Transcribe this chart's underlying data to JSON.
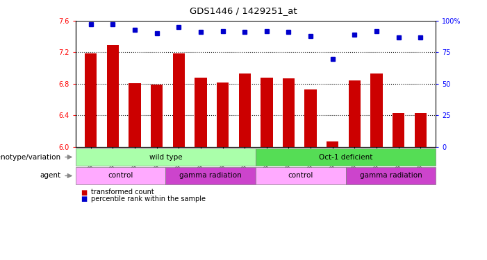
{
  "title": "GDS1446 / 1429251_at",
  "samples": [
    "GSM37835",
    "GSM37837",
    "GSM37838",
    "GSM37839",
    "GSM37840",
    "GSM37841",
    "GSM37842",
    "GSM37976",
    "GSM37843",
    "GSM37844",
    "GSM37845",
    "GSM37977",
    "GSM37846",
    "GSM37847",
    "GSM37848",
    "GSM37849"
  ],
  "bar_values": [
    7.19,
    7.29,
    6.81,
    6.79,
    7.19,
    6.88,
    6.82,
    6.93,
    6.88,
    6.87,
    6.73,
    6.07,
    6.84,
    6.93,
    6.43,
    6.43
  ],
  "percentile_values": [
    97,
    97,
    93,
    90,
    95,
    91,
    92,
    91,
    92,
    91,
    88,
    70,
    89,
    92,
    87,
    87
  ],
  "bar_color": "#cc0000",
  "percentile_color": "#0000cc",
  "ylim_left": [
    6.0,
    7.6
  ],
  "ylim_right": [
    0,
    100
  ],
  "yticks_left": [
    6.0,
    6.4,
    6.8,
    7.2,
    7.6
  ],
  "yticks_right": [
    0,
    25,
    50,
    75,
    100
  ],
  "grid_values": [
    6.4,
    6.8,
    7.2
  ],
  "genotype_groups": [
    {
      "label": "wild type",
      "start": 0,
      "end": 8,
      "color": "#aaffaa"
    },
    {
      "label": "Oct-1 deficient",
      "start": 8,
      "end": 16,
      "color": "#55dd55"
    }
  ],
  "agent_groups": [
    {
      "label": "control",
      "start": 0,
      "end": 4,
      "color": "#ffaaff"
    },
    {
      "label": "gamma radiation",
      "start": 4,
      "end": 8,
      "color": "#cc44cc"
    },
    {
      "label": "control",
      "start": 8,
      "end": 12,
      "color": "#ffaaff"
    },
    {
      "label": "gamma radiation",
      "start": 12,
      "end": 16,
      "color": "#cc44cc"
    }
  ],
  "legend_items": [
    {
      "label": "transformed count",
      "color": "#cc0000"
    },
    {
      "label": "percentile rank within the sample",
      "color": "#0000cc"
    }
  ],
  "bg_color": "#ffffff"
}
